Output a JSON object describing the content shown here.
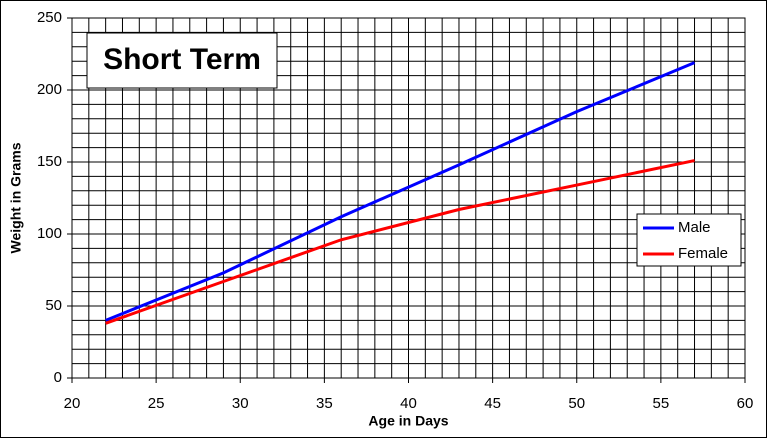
{
  "chart_data": {
    "type": "line",
    "title": "Short Term",
    "x_label": "Age in Days",
    "y_label": "Weight in Grams",
    "x": [
      22,
      29,
      36,
      43,
      50,
      57
    ],
    "series": [
      {
        "name": "Male",
        "color": "#0000ff",
        "values": [
          40,
          73,
          112,
          148,
          185,
          219
        ]
      },
      {
        "name": "Female",
        "color": "#ff0000",
        "values": [
          38,
          67,
          96,
          117,
          134,
          151
        ]
      }
    ],
    "xlim": [
      20,
      60
    ],
    "xticks": [
      20,
      25,
      30,
      35,
      40,
      45,
      50,
      55,
      60
    ],
    "ylim": [
      0,
      250
    ],
    "yticks": [
      0,
      50,
      100,
      150,
      200,
      250
    ],
    "grid": true,
    "legend": "right"
  }
}
